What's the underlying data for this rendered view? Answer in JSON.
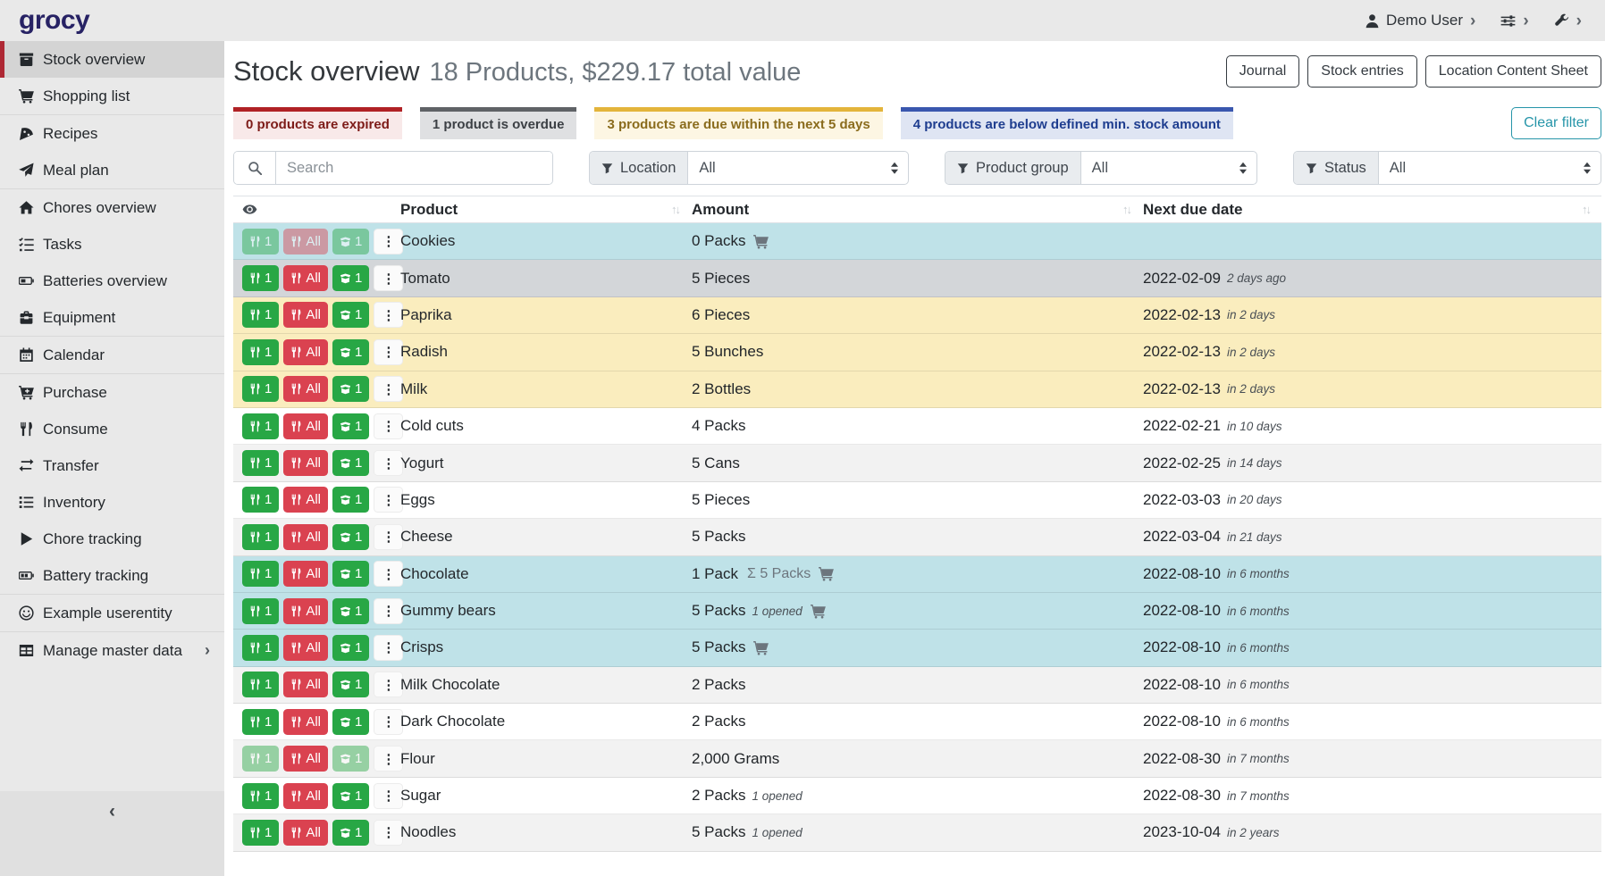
{
  "topbar": {
    "logo": "grocy",
    "user": "Demo User",
    "menus": [
      {
        "icon": "user-icon",
        "label": "Demo User"
      },
      {
        "icon": "sliders-icon",
        "label": ""
      },
      {
        "icon": "wrench-icon",
        "label": ""
      }
    ]
  },
  "sidebar": {
    "collapse_icon": "chevron-left-icon",
    "items": [
      {
        "label": "Stock overview",
        "icon": "box",
        "active": true
      },
      {
        "label": "Shopping list",
        "icon": "cart"
      },
      {
        "label": "Recipes",
        "icon": "pizza",
        "divider_before": true
      },
      {
        "label": "Meal plan",
        "icon": "paper-plane"
      },
      {
        "label": "Chores overview",
        "icon": "home",
        "divider_before": true
      },
      {
        "label": "Tasks",
        "icon": "tasks"
      },
      {
        "label": "Batteries overview",
        "icon": "battery"
      },
      {
        "label": "Equipment",
        "icon": "toolbox"
      },
      {
        "label": "Calendar",
        "icon": "calendar",
        "divider_before": true
      },
      {
        "label": "Purchase",
        "icon": "cart-plus",
        "divider_before": true
      },
      {
        "label": "Consume",
        "icon": "utensils"
      },
      {
        "label": "Transfer",
        "icon": "exchange"
      },
      {
        "label": "Inventory",
        "icon": "list"
      },
      {
        "label": "Chore tracking",
        "icon": "play"
      },
      {
        "label": "Battery tracking",
        "icon": "battery-half"
      },
      {
        "label": "Example userentity",
        "icon": "smiley",
        "divider_before": true
      },
      {
        "label": "Manage master data",
        "icon": "grid",
        "divider_before": true,
        "submenu_chevron": true
      }
    ]
  },
  "page": {
    "title": "Stock overview",
    "subtitle": "18 Products, $229.17 total value",
    "actions": [
      "Journal",
      "Stock entries",
      "Location Content Sheet"
    ],
    "clear_filter": "Clear filter"
  },
  "summary_badges": [
    {
      "text": "0 products are expired",
      "border": "#b02125",
      "bg": "#f8e9e9",
      "fg": "#7d1b18"
    },
    {
      "text": "1 product is overdue",
      "border": "#5f6266",
      "bg": "#dfe0e2",
      "fg": "#3c4045"
    },
    {
      "text": "3 products are due within the next 5 days",
      "border": "#e3b43b",
      "bg": "#fdf6e3",
      "fg": "#8a6c1d"
    },
    {
      "text": "4 products are below defined min. stock amount",
      "border": "#3a57ae",
      "bg": "#dfe5f3",
      "fg": "#1e3d8f"
    }
  ],
  "filters": {
    "search_placeholder": "Search",
    "filter_icon": "filter-icon",
    "search_icon": "search-icon",
    "location": {
      "label": "Location",
      "value": "All"
    },
    "product_group": {
      "label": "Product group",
      "value": "All"
    },
    "status": {
      "label": "Status",
      "value": "All"
    }
  },
  "table": {
    "columns": [
      "",
      "Product",
      "Amount",
      "Next due date"
    ],
    "header_icon": "eye-icon",
    "sort_icon": "sort-arrows-icon",
    "aggregate_prefix": "Σ",
    "row_buttons": {
      "consume_one": "1",
      "consume_all": "All",
      "open_one": "1"
    },
    "rows": [
      {
        "product": "Cookies",
        "amount": "0 Packs",
        "cart": true,
        "due": "",
        "due_relative": "",
        "status": "belowmin",
        "disabled": [
          "consume_one",
          "consume_all",
          "open_one"
        ]
      },
      {
        "product": "Tomato",
        "amount": "5 Pieces",
        "cart": false,
        "due": "2022-02-09",
        "due_relative": "2 days ago",
        "status": "overdue"
      },
      {
        "product": "Paprika",
        "amount": "6 Pieces",
        "cart": false,
        "due": "2022-02-13",
        "due_relative": "in 2 days",
        "status": "duesoon"
      },
      {
        "product": "Radish",
        "amount": "5 Bunches",
        "cart": false,
        "due": "2022-02-13",
        "due_relative": "in 2 days",
        "status": "duesoon"
      },
      {
        "product": "Milk",
        "amount": "2 Bottles",
        "cart": false,
        "due": "2022-02-13",
        "due_relative": "in 2 days",
        "status": "duesoon"
      },
      {
        "product": "Cold cuts",
        "amount": "4 Packs",
        "cart": false,
        "due": "2022-02-21",
        "due_relative": "in 10 days",
        "status": "none"
      },
      {
        "product": "Yogurt",
        "amount": "5 Cans",
        "cart": false,
        "due": "2022-02-25",
        "due_relative": "in 14 days",
        "status": "none"
      },
      {
        "product": "Eggs",
        "amount": "5 Pieces",
        "cart": false,
        "due": "2022-03-03",
        "due_relative": "in 20 days",
        "status": "none"
      },
      {
        "product": "Cheese",
        "amount": "5 Packs",
        "cart": false,
        "due": "2022-03-04",
        "due_relative": "in 21 days",
        "status": "none"
      },
      {
        "product": "Chocolate",
        "amount": "1 Pack",
        "aggregate": "5 Packs",
        "cart": true,
        "due": "2022-08-10",
        "due_relative": "in 6 months",
        "status": "belowmin"
      },
      {
        "product": "Gummy bears",
        "amount": "5 Packs",
        "opened": "1 opened",
        "cart": true,
        "due": "2022-08-10",
        "due_relative": "in 6 months",
        "status": "belowmin"
      },
      {
        "product": "Crisps",
        "amount": "5 Packs",
        "cart": true,
        "due": "2022-08-10",
        "due_relative": "in 6 months",
        "status": "belowmin"
      },
      {
        "product": "Milk Chocolate",
        "amount": "2 Packs",
        "cart": false,
        "due": "2022-08-10",
        "due_relative": "in 6 months",
        "status": "none"
      },
      {
        "product": "Dark Chocolate",
        "amount": "2 Packs",
        "cart": false,
        "due": "2022-08-10",
        "due_relative": "in 6 months",
        "status": "none"
      },
      {
        "product": "Flour",
        "amount": "2,000 Grams",
        "cart": false,
        "due": "2022-08-30",
        "due_relative": "in 7 months",
        "status": "none",
        "disabled": [
          "consume_one",
          "open_one"
        ]
      },
      {
        "product": "Sugar",
        "amount": "2 Packs",
        "opened": "1 opened",
        "cart": false,
        "due": "2022-08-30",
        "due_relative": "in 7 months",
        "status": "none"
      },
      {
        "product": "Noodles",
        "amount": "5 Packs",
        "opened": "1 opened",
        "cart": false,
        "due": "2023-10-04",
        "due_relative": "in 2 years",
        "status": "none"
      }
    ]
  },
  "colors": {
    "topbar_bg": "#e9e9e9",
    "sidebar_active_accent": "#ae2834",
    "button_success": "#28a745",
    "button_danger": "#da4250",
    "clear_filter_teal": "#2695a9",
    "row_below_min_stock": "#bfe2e8",
    "row_overdue": "#d3d6d9",
    "row_due_soon": "#faedbe",
    "row_stripe": "#f2f2f2",
    "logo_color": "#272264"
  }
}
